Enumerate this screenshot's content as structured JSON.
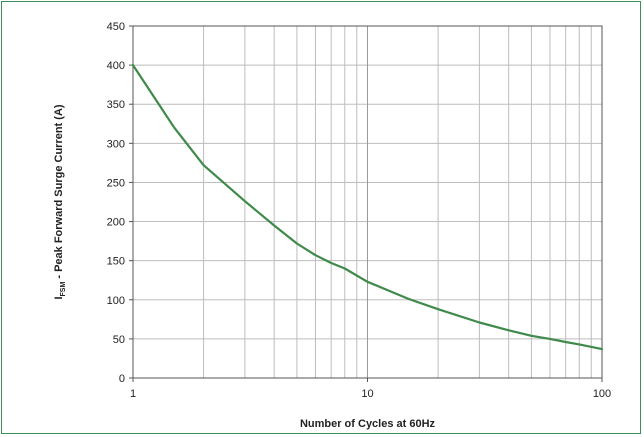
{
  "chart_data": {
    "type": "line",
    "xlabel": "Number of Cycles at 60Hz",
    "ylabel": {
      "main": "I",
      "sub": "FSM",
      "rest": " - Peak Forward Surge Current (A)"
    },
    "x_scale": "log",
    "xlim": [
      1,
      100
    ],
    "ylim": [
      0,
      450
    ],
    "grid": true,
    "x_ticks": [
      1,
      10,
      100
    ],
    "x_tick_labels": [
      "1",
      "10",
      "100"
    ],
    "x_minor_grid": [
      2,
      3,
      4,
      5,
      6,
      7,
      8,
      9,
      20,
      30,
      40,
      50,
      60,
      70,
      80,
      90
    ],
    "y_ticks": [
      0,
      50,
      100,
      150,
      200,
      250,
      300,
      350,
      400,
      450
    ],
    "y_tick_labels": [
      "0",
      "50",
      "100",
      "150",
      "200",
      "250",
      "300",
      "350",
      "400",
      "450"
    ],
    "series": [
      {
        "color": "#3f8a4a",
        "x": [
          1,
          1.5,
          2,
          3,
          4,
          5,
          6,
          7,
          8,
          10,
          15,
          20,
          30,
          40,
          50,
          60,
          70,
          80,
          100
        ],
        "y": [
          400,
          320,
          272,
          226,
          195,
          172,
          157,
          147,
          140,
          123,
          101,
          88,
          71,
          61,
          54,
          50,
          46,
          43,
          37
        ]
      }
    ]
  }
}
